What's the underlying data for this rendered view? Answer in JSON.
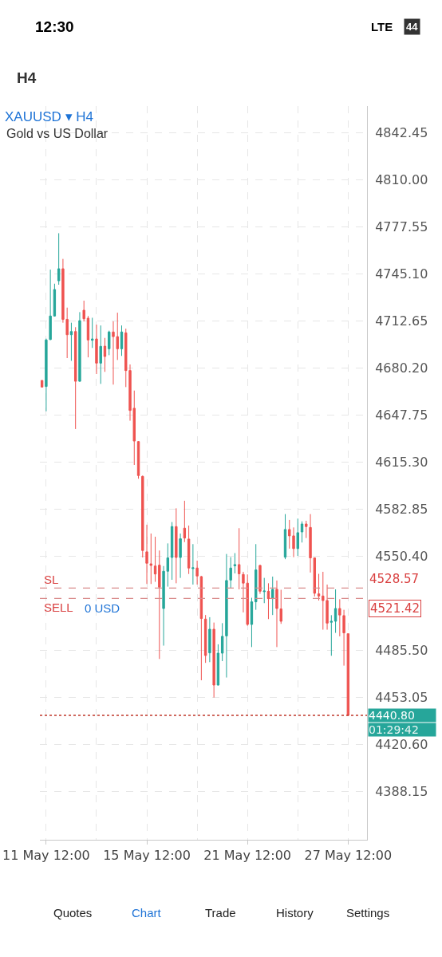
{
  "chart_data": {
    "type": "candlestick",
    "title": "XAUUSD ▾ H4",
    "subtitle": "Gold vs US Dollar",
    "categories": [
      null,
      "11 May 12:00",
      null,
      null,
      null,
      null,
      null,
      null,
      null,
      null,
      null,
      null,
      null,
      null,
      null,
      null,
      null,
      null,
      null,
      null,
      null,
      null,
      null,
      null,
      null,
      "15 May 12:00",
      null,
      null,
      null,
      null,
      null,
      null,
      null,
      null,
      null,
      null,
      null,
      null,
      null,
      null,
      null,
      null,
      null,
      null,
      null,
      null,
      null,
      null,
      null,
      "21 May 12:00",
      null,
      null,
      null,
      null,
      null,
      null,
      null,
      null,
      null,
      null,
      null,
      null,
      null,
      null,
      null,
      null,
      null,
      null,
      null,
      null,
      null,
      null,
      null,
      "27 May 12:00",
      null,
      null,
      null,
      null
    ],
    "ohlc": [
      [
        4671.8,
        4671.8,
        4667.2,
        4667.2
      ],
      [
        4667.6,
        4700.6,
        4650.5,
        4699.7
      ],
      [
        4700.0,
        4748.2,
        4699.6,
        4716.2
      ],
      [
        4716.2,
        4738.5,
        4715.8,
        4734.5
      ],
      [
        4740.5,
        4773.3,
        4737.8,
        4748.8
      ],
      [
        4748.8,
        4755.6,
        4711.6,
        4713.9
      ],
      [
        4713.9,
        4722.0,
        4687.2,
        4703.3
      ],
      [
        4703.3,
        4711.6,
        4685.3,
        4705.5
      ],
      [
        4705.5,
        4708.5,
        4638.3,
        4671.2
      ],
      [
        4671.2,
        4718.9,
        4670.9,
        4713.0
      ],
      [
        4720.2,
        4726.8,
        4712.5,
        4714.3
      ],
      [
        4714.7,
        4716.2,
        4687.7,
        4699.7
      ],
      [
        4699.5,
        4715.0,
        4694.2,
        4700.4
      ],
      [
        4700.4,
        4710.3,
        4676.2,
        4683.7
      ],
      [
        4683.7,
        4709.7,
        4669.4,
        4695.3
      ],
      [
        4695.4,
        4701.1,
        4677.7,
        4688.3
      ],
      [
        4693.6,
        4706.1,
        4689.2,
        4705.2
      ],
      [
        4705.2,
        4712.5,
        4668.9,
        4702.0
      ],
      [
        4702.0,
        4718.5,
        4685.9,
        4693.6
      ],
      [
        4693.6,
        4709.7,
        4688.7,
        4705.2
      ],
      [
        4704.6,
        4707.5,
        4667.2,
        4678.6
      ],
      [
        4678.6,
        4682.8,
        4644.0,
        4651.1
      ],
      [
        4652.6,
        4664.8,
        4613.5,
        4630.0
      ],
      [
        4629.6,
        4630.0,
        4604.0,
        4606.2
      ],
      [
        4605.6,
        4606.2,
        4549.7,
        4554.5
      ],
      [
        4553.6,
        4572.3,
        4531.4,
        4545.7
      ],
      [
        4545.3,
        4566.2,
        4531.4,
        4544.2
      ],
      [
        4543.8,
        4564.0,
        4532.9,
        4538.3
      ],
      [
        4544.4,
        4554.5,
        4479.7,
        4529.2
      ],
      [
        4514.5,
        4543.8,
        4488.9,
        4540.2
      ],
      [
        4540.2,
        4559.4,
        4529.6,
        4549.4
      ],
      [
        4549.7,
        4574.1,
        4534.3,
        4571.0
      ],
      [
        4571.0,
        4583.6,
        4531.9,
        4549.7
      ],
      [
        4549.7,
        4566.2,
        4535.6,
        4562.6
      ],
      [
        4569.9,
        4588.8,
        4560.3,
        4563.1
      ],
      [
        4562.4,
        4571.7,
        4538.3,
        4542.4
      ],
      [
        4542.0,
        4558.9,
        4531.0,
        4542.6
      ],
      [
        4542.4,
        4547.5,
        4531.0,
        4536.9
      ],
      [
        4536.5,
        4536.9,
        4465.0,
        4507.6
      ],
      [
        4507.2,
        4510.0,
        4477.0,
        4482.1
      ],
      [
        4483.9,
        4508.5,
        4477.5,
        4500.2
      ],
      [
        4500.2,
        4504.8,
        4453.1,
        4461.7
      ],
      [
        4461.7,
        4489.8,
        4461.4,
        4483.7
      ],
      [
        4483.7,
        4504.4,
        4478.2,
        4495.3
      ],
      [
        4495.6,
        4552.1,
        4466.9,
        4533.8
      ],
      [
        4534.1,
        4549.9,
        4528.3,
        4542.4
      ],
      [
        4543.9,
        4552.7,
        4538.7,
        4544.8
      ],
      [
        4544.8,
        4569.9,
        4527.7,
        4538.4
      ],
      [
        4538.0,
        4539.8,
        4511.8,
        4532.0
      ],
      [
        4532.0,
        4538.0,
        4502.6,
        4503.5
      ],
      [
        4503.5,
        4521.9,
        4487.9,
        4519.1
      ],
      [
        4519.1,
        4558.9,
        4513.6,
        4541.1
      ],
      [
        4544.2,
        4544.6,
        4524.6,
        4526.4
      ],
      [
        4526.1,
        4535.6,
        4518.2,
        4526.6
      ],
      [
        4526.4,
        4531.9,
        4507.2,
        4521.3
      ],
      [
        4521.3,
        4536.5,
        4510.0,
        4527.7
      ],
      [
        4527.7,
        4533.8,
        4487.9,
        4514.5
      ],
      [
        4514.2,
        4527.4,
        4503.9,
        4505.7
      ],
      [
        4549.9,
        4579.6,
        4548.5,
        4569.0
      ],
      [
        4569.0,
        4575.6,
        4555.8,
        4564.6
      ],
      [
        4564.6,
        4570.4,
        4549.9,
        4555.8
      ],
      [
        4555.8,
        4576.5,
        4550.8,
        4566.8
      ],
      [
        4567.3,
        4574.6,
        4560.0,
        4572.8
      ],
      [
        4572.8,
        4575.0,
        4563.1,
        4571.0
      ],
      [
        4570.4,
        4579.6,
        4539.3,
        4549.4
      ],
      [
        4549.4,
        4549.7,
        4522.8,
        4525.0
      ],
      [
        4524.6,
        4538.4,
        4520.0,
        4523.1
      ],
      [
        4523.1,
        4539.8,
        4499.9,
        4520.0
      ],
      [
        4520.0,
        4531.0,
        4499.9,
        4504.4
      ],
      [
        4505.0,
        4509.9,
        4481.9,
        4505.7
      ],
      [
        4505.7,
        4527.7,
        4497.7,
        4514.5
      ],
      [
        4514.5,
        4520.9,
        4495.3,
        4510.0
      ],
      [
        4509.6,
        4513.6,
        4475.1,
        4497.7
      ],
      [
        4497.1,
        4497.1,
        4440.8,
        4440.8
      ],
      null,
      null,
      null,
      null
    ],
    "colors": [
      "#ef5350",
      "#26a69a",
      "#26a69a",
      "#26a69a",
      "#26a69a",
      "#ef5350",
      "#ef5350",
      "#26a69a",
      "#ef5350",
      "#26a69a",
      "#ef5350",
      "#ef5350",
      "#26a69a",
      "#ef5350",
      "#26a69a",
      "#ef5350",
      "#26a69a",
      "#ef5350",
      "#ef5350",
      "#26a69a",
      "#ef5350",
      "#ef5350",
      "#ef5350",
      "#ef5350",
      "#ef5350",
      "#ef5350",
      "#ef5350",
      "#ef5350",
      "#ef5350",
      "#26a69a",
      "#26a69a",
      "#26a69a",
      "#ef5350",
      "#26a69a",
      "#ef5350",
      "#ef5350",
      "#26a69a",
      "#ef5350",
      "#ef5350",
      "#ef5350",
      "#26a69a",
      "#ef5350",
      "#26a69a",
      "#26a69a",
      "#26a69a",
      "#26a69a",
      "#26a69a",
      "#ef5350",
      "#ef5350",
      "#ef5350",
      "#26a69a",
      "#26a69a",
      "#ef5350",
      "#26a69a",
      "#ef5350",
      "#26a69a",
      "#ef5350",
      "#ef5350",
      "#26a69a",
      "#ef5350",
      "#ef5350",
      "#26a69a",
      "#26a69a",
      "#ef5350",
      "#ef5350",
      "#ef5350",
      "#ef5350",
      "#ef5350",
      "#ef5350",
      "#26a69a",
      "#26a69a",
      "#ef5350",
      "#ef5350",
      "#ef5350",
      null,
      null,
      null,
      null
    ],
    "ylim": [
      4355,
      4861
    ],
    "yticks": [
      4842.45,
      {
        "value": 4810,
        "label": "4810.00"
      },
      4777.55,
      {
        "value": 4745.1,
        "label": "4745.10"
      },
      4712.65,
      {
        "value": 4680.2,
        "label": "4680.20"
      },
      4647.75,
      {
        "value": 4615.3,
        "label": "4615.30"
      },
      4582.85,
      {
        "value": 4550.4,
        "label": "4550.40"
      },
      {
        "value": 4485.5,
        "label": "4485.50"
      },
      4453.05,
      {
        "value": 4420.6,
        "label": "4420.60"
      },
      4388.15
    ],
    "grid": true,
    "ref_lines": [
      {
        "axis": "y",
        "value": 4528.57,
        "label": "SL",
        "color": "#d98c8c",
        "line_style": "dashed"
      },
      {
        "axis": "y",
        "value": 4521.42,
        "label": "SELL",
        "color": "#d98c8c",
        "line_style": "dashed"
      },
      {
        "axis": "y",
        "value": 4440.8,
        "color": "#c0392b",
        "line_style": "dotted"
      }
    ],
    "annotations": [
      "12:30",
      "LTE",
      "44",
      "H4",
      "Quotes",
      "Chart",
      "Trade",
      "History",
      "Settings",
      "0 USD",
      "4528.57",
      "4521.42",
      "4440.80",
      "01:29:42"
    ]
  }
}
